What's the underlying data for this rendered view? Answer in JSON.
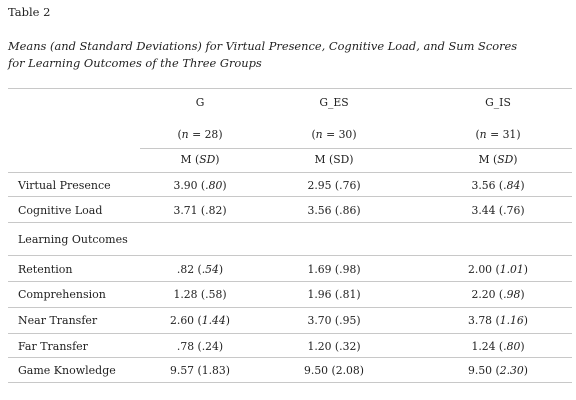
{
  "table_label": "Table 2",
  "caption_lines": [
    "Means (and Standard Deviations) for Virtual Presence, Cognitive Load, and Sum Scores",
    "for Learning Outcomes of the Three Groups"
  ],
  "columns": [
    {
      "name": "G",
      "n_var": "n",
      "n_value": "28"
    },
    {
      "name": "G_ES",
      "n_var": "n",
      "n_value": "30"
    },
    {
      "name": "G_IS",
      "n_var": "n",
      "n_value": "31"
    }
  ],
  "stat_label": {
    "m": "M",
    "sd": "SD"
  },
  "section_label": "Learning Outcomes",
  "rows": [
    {
      "label": "Virtual Presence",
      "cells": [
        {
          "mean": "3.90",
          "sd": ".80",
          "sd_italic": true
        },
        {
          "mean": "2.95",
          "sd": ".76",
          "sd_italic": false
        },
        {
          "mean": "3.56",
          "sd": ".84",
          "sd_italic": true
        }
      ]
    },
    {
      "label": "Cognitive Load",
      "cells": [
        {
          "mean": "3.71",
          "sd": ".82",
          "sd_italic": false
        },
        {
          "mean": "3.56",
          "sd": ".86",
          "sd_italic": false
        },
        {
          "mean": "3.44",
          "sd": ".76",
          "sd_italic": false
        }
      ]
    },
    {
      "label": "Retention",
      "cells": [
        {
          "mean": ".82",
          "sd": ".54",
          "sd_italic": true
        },
        {
          "mean": "1.69",
          "sd": ".98",
          "sd_italic": false
        },
        {
          "mean": "2.00",
          "sd": "1.01",
          "sd_italic": true
        }
      ]
    },
    {
      "label": "Comprehension",
      "cells": [
        {
          "mean": "1.28",
          "sd": ".58",
          "sd_italic": false
        },
        {
          "mean": "1.96",
          "sd": ".81",
          "sd_italic": false
        },
        {
          "mean": "2.20",
          "sd": ".98",
          "sd_italic": true
        }
      ]
    },
    {
      "label": "Near Transfer",
      "cells": [
        {
          "mean": "2.60",
          "sd": "1.44",
          "sd_italic": true
        },
        {
          "mean": "3.70",
          "sd": ".95",
          "sd_italic": false
        },
        {
          "mean": "3.78",
          "sd": "1.16",
          "sd_italic": true
        }
      ]
    },
    {
      "label": "Far Transfer",
      "cells": [
        {
          "mean": ".78",
          "sd": ".24",
          "sd_italic": false
        },
        {
          "mean": "1.20",
          "sd": ".32",
          "sd_italic": false
        },
        {
          "mean": "1.24",
          "sd": ".80",
          "sd_italic": true
        }
      ]
    },
    {
      "label": "Game Knowledge",
      "cells": [
        {
          "mean": "9.57",
          "sd": "1.83",
          "sd_italic": false
        },
        {
          "mean": "9.50",
          "sd": "2.08",
          "sd_italic": false
        },
        {
          "mean": "9.50",
          "sd": "2.30",
          "sd_italic": true
        }
      ]
    }
  ]
}
